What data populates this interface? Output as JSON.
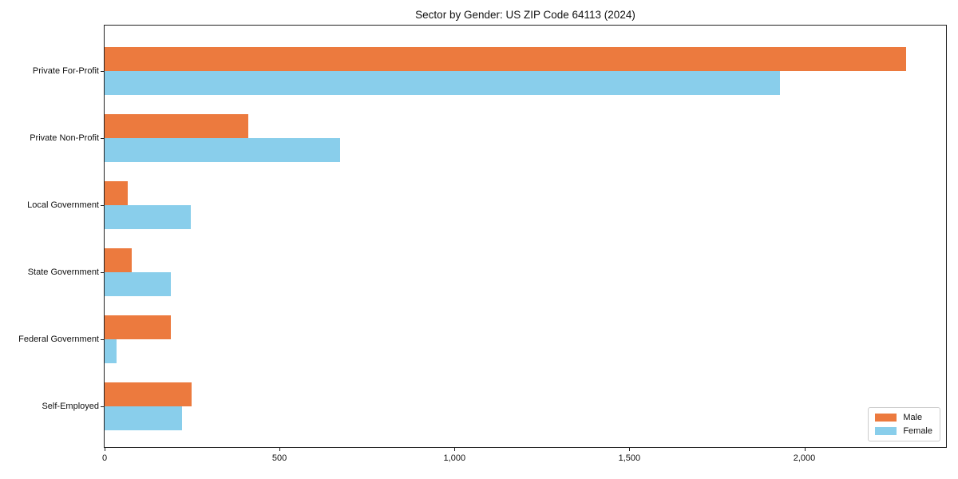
{
  "chart_data": {
    "type": "bar",
    "orientation": "horizontal",
    "title": "Sector by Gender: US ZIP Code 64113 (2024)",
    "categories": [
      "Private For-Profit",
      "Private Non-Profit",
      "Local Government",
      "State Government",
      "Federal Government",
      "Self-Employed"
    ],
    "series": [
      {
        "name": "Male",
        "color": "#EC7A3E",
        "values": [
          2290,
          410,
          66,
          78,
          190,
          248
        ]
      },
      {
        "name": "Female",
        "color": "#89CEEB",
        "values": [
          1930,
          673,
          246,
          190,
          34,
          222
        ]
      }
    ],
    "xlabel": "",
    "ylabel": "",
    "xlim": [
      0,
      2405
    ],
    "xticks": [
      {
        "value": 0,
        "label": "0"
      },
      {
        "value": 500,
        "label": "500"
      },
      {
        "value": 1000,
        "label": "1,000"
      },
      {
        "value": 1500,
        "label": "1,500"
      },
      {
        "value": 2000,
        "label": "2,000"
      }
    ],
    "grid": false,
    "legend_position": "lower right",
    "frame_color": "#222222"
  }
}
